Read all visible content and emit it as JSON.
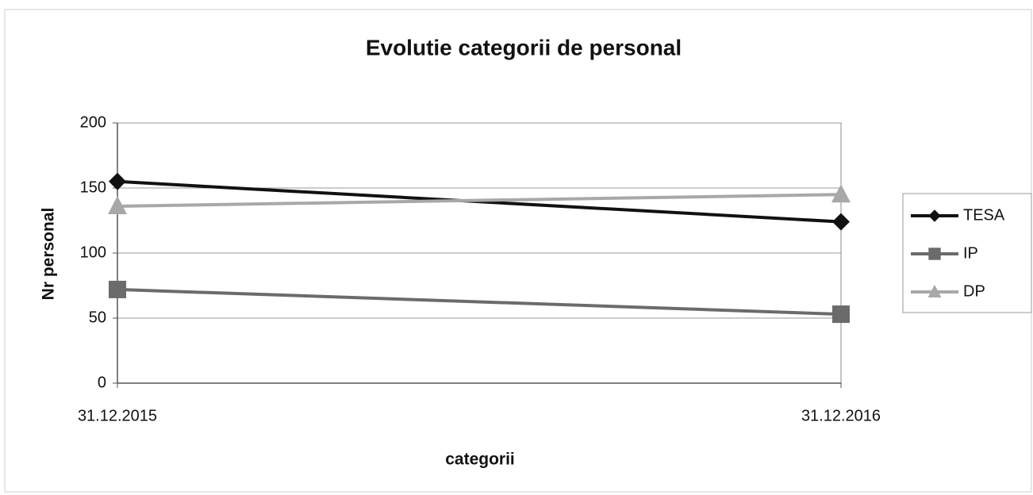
{
  "chart_data": {
    "type": "line",
    "title": "Evolutie categorii de personal",
    "xlabel": "categorii",
    "ylabel": "Nr personal",
    "categories": [
      "31.12.2015",
      "31.12.2016"
    ],
    "series": [
      {
        "name": "TESA",
        "color": "#111111",
        "marker": "diamond",
        "values": [
          155,
          124
        ]
      },
      {
        "name": "IP",
        "color": "#6b6b6b",
        "marker": "square",
        "values": [
          72,
          53
        ]
      },
      {
        "name": "DP",
        "color": "#a8a8a8",
        "marker": "triangle",
        "values": [
          136,
          145
        ]
      }
    ],
    "ylim": [
      0,
      200
    ],
    "yticks": [
      0,
      50,
      100,
      150,
      200
    ],
    "grid": true,
    "legend": "right"
  }
}
